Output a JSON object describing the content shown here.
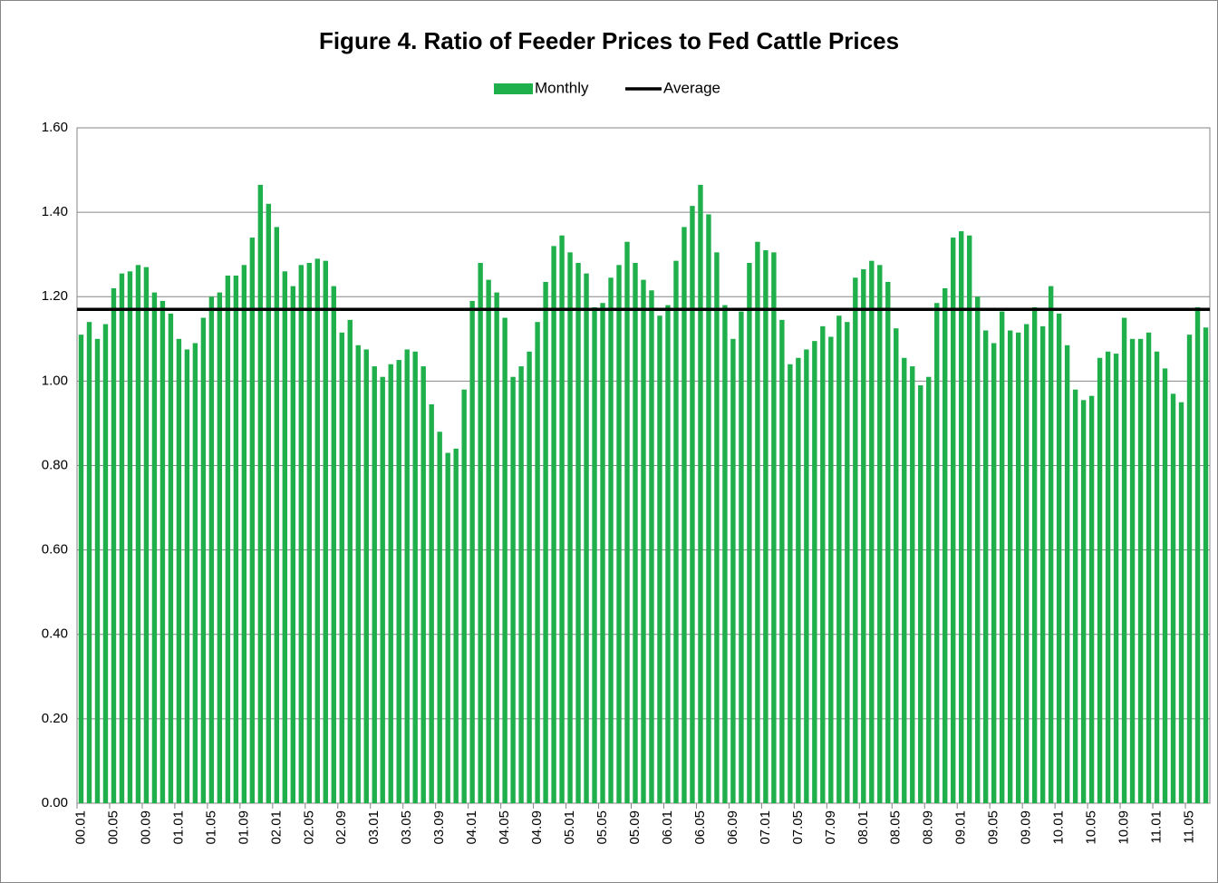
{
  "chart_data": {
    "type": "bar",
    "title": "Figure 4.  Ratio of Feeder Prices to Fed Cattle Prices",
    "categories": [
      "00.01",
      null,
      null,
      null,
      "00.05",
      null,
      null,
      null,
      "00.09",
      null,
      null,
      null,
      "01.01",
      null,
      null,
      null,
      "01.05",
      null,
      null,
      null,
      "01.09",
      null,
      null,
      null,
      "02.01",
      null,
      null,
      null,
      "02.05",
      null,
      null,
      null,
      "02.09",
      null,
      null,
      null,
      "03.01",
      null,
      null,
      null,
      "03.05",
      null,
      null,
      null,
      "03.09",
      null,
      null,
      null,
      "04.01",
      null,
      null,
      null,
      "04.05",
      null,
      null,
      null,
      "04.09",
      null,
      null,
      null,
      "05.01",
      null,
      null,
      null,
      "05.05",
      null,
      null,
      null,
      "05.09",
      null,
      null,
      null,
      "06.01",
      null,
      null,
      null,
      "06.05",
      null,
      null,
      null,
      "06.09",
      null,
      null,
      null,
      "07.01",
      null,
      null,
      null,
      "07.05",
      null,
      null,
      null,
      "07.09",
      null,
      null,
      null,
      "08.01",
      null,
      null,
      null,
      "08.05",
      null,
      null,
      null,
      "08.09",
      null,
      null,
      null,
      "09.01",
      null,
      null,
      null,
      "09.05",
      null,
      null,
      null,
      "09.09",
      null,
      null,
      null,
      "10.01",
      null,
      null,
      null,
      "10.05",
      null,
      null,
      null,
      "10.09",
      null,
      null,
      null,
      "11.01",
      null,
      null,
      null,
      "11.05",
      null,
      null
    ],
    "series": [
      {
        "name": "Monthly",
        "color": "#1fb04c",
        "values": [
          1.11,
          1.14,
          1.1,
          1.135,
          1.22,
          1.255,
          1.26,
          1.275,
          1.27,
          1.21,
          1.19,
          1.16,
          1.1,
          1.075,
          1.09,
          1.15,
          1.2,
          1.21,
          1.25,
          1.25,
          1.275,
          1.34,
          1.465,
          1.42,
          1.365,
          1.26,
          1.225,
          1.275,
          1.28,
          1.29,
          1.285,
          1.225,
          1.115,
          1.145,
          1.085,
          1.075,
          1.035,
          1.01,
          1.04,
          1.05,
          1.075,
          1.07,
          1.035,
          0.945,
          0.88,
          0.83,
          0.84,
          0.98,
          1.19,
          1.28,
          1.24,
          1.21,
          1.15,
          1.01,
          1.035,
          1.07,
          1.14,
          1.235,
          1.32,
          1.345,
          1.305,
          1.28,
          1.255,
          1.175,
          1.185,
          1.245,
          1.275,
          1.33,
          1.28,
          1.24,
          1.215,
          1.155,
          1.18,
          1.285,
          1.365,
          1.415,
          1.465,
          1.395,
          1.305,
          1.18,
          1.1,
          1.165,
          1.28,
          1.33,
          1.31,
          1.305,
          1.145,
          1.04,
          1.055,
          1.075,
          1.095,
          1.13,
          1.105,
          1.155,
          1.14,
          1.245,
          1.265,
          1.285,
          1.275,
          1.235,
          1.125,
          1.055,
          1.035,
          0.99,
          1.01,
          1.185,
          1.22,
          1.34,
          1.355,
          1.345,
          1.2,
          1.12,
          1.09,
          1.165,
          1.12,
          1.115,
          1.135,
          1.175,
          1.13,
          1.225,
          1.16,
          1.085,
          0.98,
          0.955,
          0.965,
          1.055,
          1.07,
          1.065,
          1.15,
          1.1,
          1.1,
          1.115,
          1.07,
          1.03,
          0.97,
          0.95,
          1.11,
          1.175,
          1.127
        ]
      },
      {
        "name": "Average",
        "color": "#000000",
        "value": 1.17
      }
    ],
    "ylim": [
      0,
      1.6
    ],
    "yticks": [
      {
        "value": 0,
        "label": "0.00"
      },
      {
        "value": 0.2,
        "label": "0.20"
      },
      {
        "value": 0.4,
        "label": "0.40"
      },
      {
        "value": 0.6,
        "label": "0.60"
      },
      {
        "value": 0.8,
        "label": "0.80"
      },
      {
        "value": 1.0,
        "label": "1.00"
      },
      {
        "value": 1.2,
        "label": "1.20"
      },
      {
        "value": 1.4,
        "label": "1.40"
      },
      {
        "value": 1.6,
        "label": "1.60"
      }
    ],
    "grid": true
  }
}
